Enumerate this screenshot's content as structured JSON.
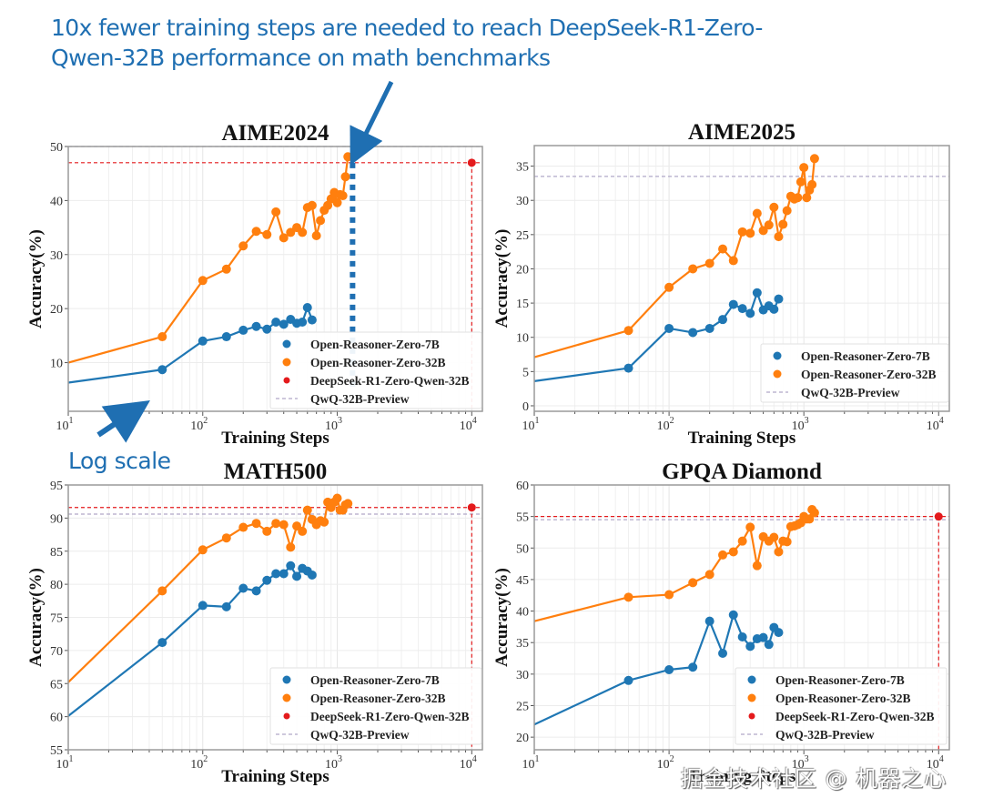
{
  "annotation": {
    "headline_line1": "10x fewer training steps are needed to reach DeepSeek-R1-Zero-",
    "headline_line2": "Qwen-32B performance on math benchmarks",
    "log_scale_label": "Log scale",
    "watermark": "掘金技术社区 @ 机器之心"
  },
  "colors": {
    "open_reasoner_7b": "#1f77b4",
    "open_reasoner_32b": "#ff7f0e",
    "deepseek": "#e41a1c",
    "qwq": "#b0a8c8",
    "annotation_blue": "#1f6fb2"
  },
  "chart_data": [
    {
      "type": "line",
      "title": "AIME2024",
      "xlabel": "Training Steps",
      "ylabel": "Accuracy(%)",
      "xscale": "log",
      "xlim": [
        10,
        12000
      ],
      "ylim": [
        1,
        50
      ],
      "xticks": [
        10,
        100,
        1000,
        10000
      ],
      "xtick_labels": [
        "10^1",
        "10^2",
        "10^3",
        "10^4"
      ],
      "yticks": [
        10,
        20,
        30,
        40,
        50
      ],
      "grid": true,
      "legend_position": "lower-right",
      "legend": [
        "Open-Reasoner-Zero-7B",
        "Open-Reasoner-Zero-32B",
        "DeepSeek-R1-Zero-Qwen-32B",
        "QwQ-32B-Preview"
      ],
      "series": [
        {
          "name": "Open-Reasoner-Zero-7B",
          "color_key": "open_reasoner_7b",
          "x": [
            10,
            50,
            100,
            150,
            200,
            250,
            300,
            350,
            400,
            450,
            500,
            550,
            600,
            650
          ],
          "y": [
            6.3,
            8.7,
            14.0,
            14.8,
            16.0,
            16.7,
            16.2,
            17.5,
            17.1,
            18.0,
            17.3,
            17.5,
            20.2,
            17.9
          ],
          "first_point_marker": false
        },
        {
          "name": "Open-Reasoner-Zero-32B",
          "color_key": "open_reasoner_32b",
          "x": [
            10,
            50,
            100,
            150,
            200,
            250,
            300,
            350,
            400,
            450,
            500,
            550,
            600,
            650,
            700,
            750,
            800,
            850,
            900,
            950,
            1000,
            1050,
            1100,
            1150,
            1200
          ],
          "y": [
            10.0,
            14.8,
            25.2,
            27.3,
            31.6,
            34.3,
            33.7,
            37.9,
            33.1,
            34.1,
            35.0,
            34.1,
            38.7,
            39.1,
            33.5,
            36.3,
            38.2,
            39.1,
            40.3,
            41.5,
            39.6,
            41.1,
            40.9,
            44.4,
            48.1
          ],
          "first_point_marker": false
        }
      ],
      "reference_point": {
        "name": "DeepSeek-R1-Zero-Qwen-32B",
        "x": 10000,
        "y": 47.0,
        "color_key": "deepseek"
      },
      "hlines": [
        {
          "name": "QwQ-32B-Preview",
          "y": 50.0,
          "color_key": "qwq"
        },
        {
          "name": "DeepSeek-R1-Zero-Qwen-32B level",
          "y": 47.0,
          "color_key": "deepseek"
        }
      ],
      "annotation_marker": {
        "type": "dotted-vertical",
        "x": 1300,
        "y_from": 5,
        "y_to": 47,
        "color_key": "annotation_blue"
      }
    },
    {
      "type": "line",
      "title": "AIME2025",
      "xlabel": "Training Steps",
      "ylabel": "Accuracy(%)",
      "xscale": "log",
      "xlim": [
        10,
        12000
      ],
      "ylim": [
        -0.8,
        38
      ],
      "xticks": [
        10,
        100,
        1000,
        10000
      ],
      "xtick_labels": [
        "10^1",
        "10^2",
        "10^3",
        "10^4"
      ],
      "yticks": [
        0,
        5,
        10,
        15,
        20,
        25,
        30,
        35
      ],
      "grid": true,
      "legend_position": "lower-right",
      "legend": [
        "Open-Reasoner-Zero-7B",
        "Open-Reasoner-Zero-32B",
        "QwQ-32B-Preview"
      ],
      "series": [
        {
          "name": "Open-Reasoner-Zero-7B",
          "color_key": "open_reasoner_7b",
          "x": [
            10,
            50,
            100,
            150,
            200,
            250,
            300,
            350,
            400,
            450,
            500,
            550,
            600,
            650
          ],
          "y": [
            3.6,
            5.5,
            11.3,
            10.7,
            11.3,
            12.6,
            14.8,
            14.2,
            13.5,
            16.5,
            14.0,
            14.6,
            14.1,
            15.6
          ],
          "first_point_marker": false
        },
        {
          "name": "Open-Reasoner-Zero-32B",
          "color_key": "open_reasoner_32b",
          "x": [
            10,
            50,
            100,
            150,
            200,
            250,
            300,
            350,
            400,
            450,
            500,
            550,
            600,
            650,
            700,
            750,
            800,
            850,
            900,
            950,
            1000,
            1050,
            1100,
            1150,
            1200
          ],
          "y": [
            7.1,
            11.0,
            17.3,
            20.0,
            20.8,
            22.9,
            21.2,
            25.4,
            25.2,
            28.1,
            25.6,
            26.4,
            29.0,
            24.7,
            26.5,
            28.5,
            30.6,
            30.2,
            30.4,
            32.7,
            34.8,
            30.4,
            31.5,
            32.3,
            36.1
          ],
          "first_point_marker": false
        }
      ],
      "hlines": [
        {
          "name": "QwQ-32B-Preview",
          "y": 33.5,
          "color_key": "qwq"
        }
      ]
    },
    {
      "type": "line",
      "title": "MATH500",
      "xlabel": "Training Steps",
      "ylabel": "Accuracy(%)",
      "xscale": "log",
      "xlim": [
        10,
        12000
      ],
      "ylim": [
        55,
        95
      ],
      "xticks": [
        10,
        100,
        1000,
        10000
      ],
      "xtick_labels": [
        "10^1",
        "10^2",
        "10^3",
        "10^4"
      ],
      "yticks": [
        55,
        60,
        65,
        70,
        75,
        80,
        85,
        90,
        95
      ],
      "grid": true,
      "legend_position": "lower-right",
      "legend": [
        "Open-Reasoner-Zero-7B",
        "Open-Reasoner-Zero-32B",
        "DeepSeek-R1-Zero-Qwen-32B",
        "QwQ-32B-Preview"
      ],
      "series": [
        {
          "name": "Open-Reasoner-Zero-7B",
          "color_key": "open_reasoner_7b",
          "x": [
            10,
            50,
            100,
            150,
            200,
            250,
            300,
            350,
            400,
            450,
            500,
            550,
            600,
            650
          ],
          "y": [
            60.1,
            71.2,
            76.8,
            76.6,
            79.4,
            79.0,
            80.6,
            81.6,
            81.6,
            82.8,
            81.2,
            82.4,
            82.0,
            81.4
          ],
          "first_point_marker": false
        },
        {
          "name": "Open-Reasoner-Zero-32B",
          "color_key": "open_reasoner_32b",
          "x": [
            10,
            50,
            100,
            150,
            200,
            250,
            300,
            350,
            400,
            450,
            500,
            550,
            600,
            650,
            700,
            750,
            800,
            850,
            900,
            950,
            1000,
            1050,
            1100,
            1150,
            1200
          ],
          "y": [
            65.2,
            79.0,
            85.2,
            87.0,
            88.6,
            89.2,
            88.0,
            89.2,
            89.0,
            85.6,
            88.8,
            88.0,
            91.2,
            89.8,
            89.0,
            89.6,
            89.4,
            92.4,
            91.6,
            92.4,
            93.0,
            91.2,
            91.2,
            92.0,
            92.2
          ],
          "first_point_marker": false
        }
      ],
      "reference_point": {
        "name": "DeepSeek-R1-Zero-Qwen-32B",
        "x": 10000,
        "y": 91.6,
        "color_key": "deepseek"
      },
      "hlines": [
        {
          "name": "QwQ-32B-Preview",
          "y": 90.6,
          "color_key": "qwq"
        },
        {
          "name": "DeepSeek-R1-Zero-Qwen-32B level",
          "y": 91.6,
          "color_key": "deepseek"
        }
      ]
    },
    {
      "type": "line",
      "title": "GPQA Diamond",
      "xlabel": "Training Steps",
      "ylabel": "Accuracy(%)",
      "xscale": "log",
      "xlim": [
        10,
        12000
      ],
      "ylim": [
        18,
        60
      ],
      "xticks": [
        10,
        100,
        1000,
        10000
      ],
      "xtick_labels": [
        "10^1",
        "10^2",
        "10^3",
        "10^4"
      ],
      "yticks": [
        20,
        25,
        30,
        35,
        40,
        45,
        50,
        55,
        60
      ],
      "grid": true,
      "legend_position": "lower-right",
      "legend": [
        "Open-Reasoner-Zero-7B",
        "Open-Reasoner-Zero-32B",
        "DeepSeek-R1-Zero-Qwen-32B",
        "QwQ-32B-Preview"
      ],
      "series": [
        {
          "name": "Open-Reasoner-Zero-7B",
          "color_key": "open_reasoner_7b",
          "x": [
            10,
            50,
            100,
            150,
            200,
            250,
            300,
            350,
            400,
            450,
            500,
            550,
            600,
            650
          ],
          "y": [
            22.0,
            29.0,
            30.7,
            31.1,
            38.4,
            33.3,
            39.4,
            35.9,
            34.4,
            35.6,
            35.8,
            34.7,
            37.4,
            36.6
          ],
          "first_point_marker": false
        },
        {
          "name": "Open-Reasoner-Zero-32B",
          "color_key": "open_reasoner_32b",
          "x": [
            10,
            50,
            100,
            150,
            200,
            250,
            300,
            350,
            400,
            450,
            500,
            550,
            600,
            650,
            700,
            750,
            800,
            850,
            900,
            950,
            1000,
            1050,
            1100,
            1150,
            1200
          ],
          "y": [
            38.4,
            42.2,
            42.6,
            44.5,
            45.8,
            48.9,
            49.4,
            51.1,
            53.3,
            47.2,
            51.8,
            51.1,
            51.7,
            49.4,
            51.1,
            51.0,
            53.4,
            53.5,
            53.7,
            54.0,
            55.0,
            54.6,
            54.6,
            56.1,
            55.6
          ],
          "first_point_marker": false
        }
      ],
      "reference_point": {
        "name": "DeepSeek-R1-Zero-Qwen-32B",
        "x": 10000,
        "y": 55.0,
        "color_key": "deepseek"
      },
      "hlines": [
        {
          "name": "QwQ-32B-Preview",
          "y": 54.5,
          "color_key": "qwq"
        },
        {
          "name": "DeepSeek-R1-Zero-Qwen-32B level",
          "y": 55.0,
          "color_key": "deepseek"
        }
      ]
    }
  ]
}
